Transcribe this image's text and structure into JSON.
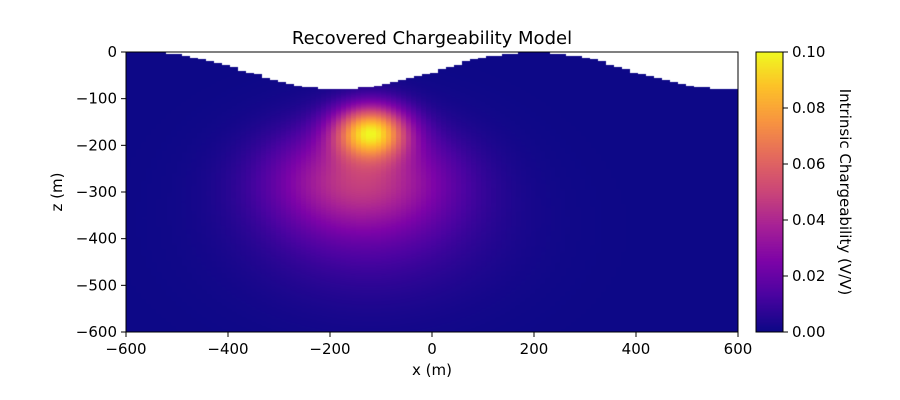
{
  "chart_data": {
    "type": "heatmap",
    "title": "Recovered Chargeability Model",
    "xlabel": "x (m)",
    "ylabel": "z (m)",
    "xlim": [
      -600,
      600
    ],
    "ylim": [
      -600,
      0
    ],
    "xticks": [
      -600,
      -400,
      -200,
      0,
      200,
      400,
      600
    ],
    "xtick_labels": [
      "−600",
      "−400",
      "−200",
      "0",
      "200",
      "400",
      "600"
    ],
    "yticks": [
      0,
      -100,
      -200,
      -300,
      -400,
      -500,
      -600
    ],
    "ytick_labels": [
      "0",
      "−100",
      "−200",
      "−300",
      "−400",
      "−500",
      "−600"
    ],
    "colormap": "plasma",
    "colorbar": {
      "label": "Intrinsic Chargeability (V/V)",
      "range": [
        0,
        0.1
      ],
      "ticks": [
        0,
        0.02,
        0.04,
        0.06,
        0.08,
        0.1
      ],
      "tick_labels": [
        "0.00",
        "0.02",
        "0.04",
        "0.06",
        "0.08",
        "0.10"
      ]
    },
    "topography": {
      "min_z": -80,
      "min_x": -180,
      "max_z": 0,
      "max_x": 200
    },
    "anomaly": {
      "center_x": -120,
      "center_z": -170,
      "peak_value": 0.08,
      "halo_value": 0.04,
      "halo_center_z": -270
    },
    "grid": false
  }
}
